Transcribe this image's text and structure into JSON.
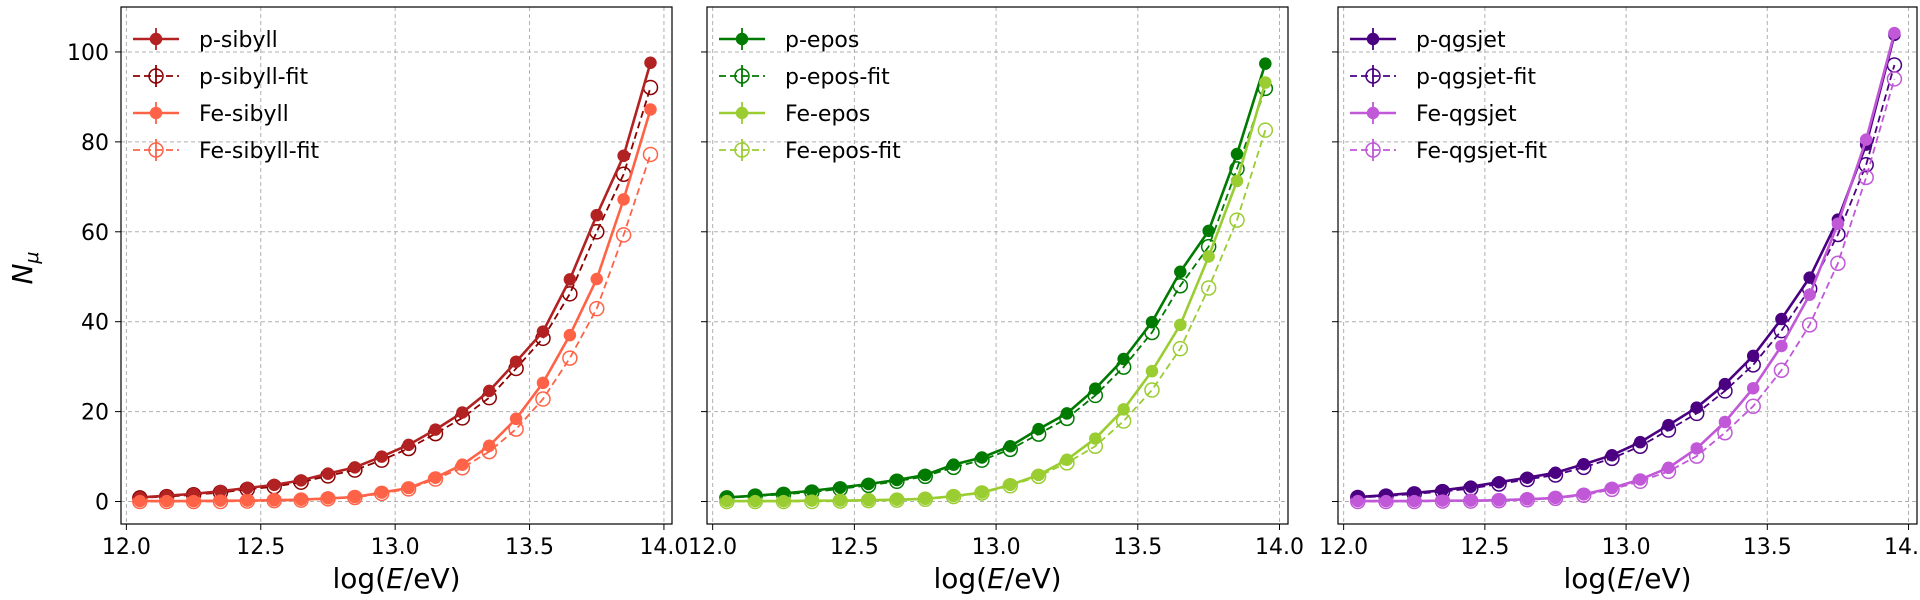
{
  "figure": {
    "ylabel_base": "N",
    "ylabel_sub": "μ"
  },
  "chart_data": [
    {
      "type": "line",
      "xlabel": "log(E/eV)",
      "xlim": [
        11.98,
        14.03
      ],
      "ylim": [
        -5,
        110
      ],
      "xticks": [
        "12.0",
        "12.5",
        "13.0",
        "13.5",
        "14.0"
      ],
      "yticks": [
        "0",
        "20",
        "40",
        "60",
        "80",
        "100"
      ],
      "grid": true,
      "legend_position": "top-left",
      "x": [
        12.05,
        12.15,
        12.25,
        12.35,
        12.45,
        12.55,
        12.65,
        12.75,
        12.85,
        12.95,
        13.05,
        13.15,
        13.25,
        13.35,
        13.45,
        13.55,
        13.65,
        13.75,
        13.85,
        13.95
      ],
      "series": [
        {
          "name": "p-sibyll",
          "style": "solid-filled",
          "color": "#b22222",
          "values": [
            0.9,
            1.3,
            1.7,
            2.3,
            3.0,
            3.7,
            4.7,
            6.2,
            7.6,
            10.0,
            12.6,
            16.0,
            19.8,
            24.6,
            31.1,
            37.8,
            49.4,
            63.7,
            76.9,
            97.6
          ]
        },
        {
          "name": "p-sibyll-fit",
          "style": "dashed-open",
          "color": "#8b0000",
          "values": [
            0.8,
            1.1,
            1.5,
            2.0,
            2.7,
            3.3,
            4.3,
            5.7,
            7.0,
            9.2,
            11.8,
            15.1,
            18.6,
            23.1,
            29.6,
            36.3,
            46.2,
            60.0,
            72.8,
            92.1
          ]
        },
        {
          "name": "Fe-sibyll",
          "style": "solid-filled",
          "color": "#ff6347",
          "values": [
            0.1,
            0.1,
            0.1,
            0.2,
            0.2,
            0.3,
            0.4,
            0.7,
            1.0,
            2.0,
            3.0,
            5.3,
            8.2,
            12.4,
            18.4,
            26.4,
            37.0,
            49.5,
            67.2,
            87.2
          ]
        },
        {
          "name": "Fe-sibyll-fit",
          "style": "dashed-open",
          "color": "#ff6347",
          "values": [
            0.0,
            0.0,
            0.0,
            0.0,
            0.1,
            0.2,
            0.3,
            0.6,
            0.9,
            1.8,
            2.8,
            5.0,
            7.5,
            11.1,
            16.1,
            22.8,
            31.9,
            42.9,
            59.3,
            77.2
          ]
        }
      ]
    },
    {
      "type": "line",
      "xlabel": "log(E/eV)",
      "xlim": [
        11.98,
        14.03
      ],
      "ylim": [
        -5,
        110
      ],
      "xticks": [
        "12.0",
        "12.5",
        "13.0",
        "13.5",
        "14.0"
      ],
      "yticks": [
        "0",
        "20",
        "40",
        "60",
        "80",
        "100"
      ],
      "grid": true,
      "legend_position": "top-left",
      "x": [
        12.05,
        12.15,
        12.25,
        12.35,
        12.45,
        12.55,
        12.65,
        12.75,
        12.85,
        12.95,
        13.05,
        13.15,
        13.25,
        13.35,
        13.45,
        13.55,
        13.65,
        13.75,
        13.85,
        13.95
      ],
      "series": [
        {
          "name": "p-epos",
          "style": "solid-filled",
          "color": "#007a00",
          "values": [
            0.9,
            1.3,
            1.8,
            2.4,
            3.1,
            3.9,
            4.8,
            5.9,
            8.2,
            9.8,
            12.3,
            16.1,
            19.6,
            25.1,
            31.7,
            39.9,
            51.1,
            60.2,
            77.3,
            97.4
          ]
        },
        {
          "name": "p-epos-fit",
          "style": "dashed-open",
          "color": "#007a00",
          "values": [
            0.8,
            1.2,
            1.6,
            2.1,
            2.8,
            3.6,
            4.5,
            5.6,
            7.6,
            9.2,
            11.6,
            15.0,
            18.5,
            23.6,
            29.9,
            37.6,
            48.0,
            56.7,
            74.0,
            91.9
          ]
        },
        {
          "name": "Fe-epos",
          "style": "solid-filled",
          "color": "#9acd32",
          "values": [
            0.1,
            0.1,
            0.1,
            0.2,
            0.2,
            0.3,
            0.4,
            0.6,
            1.2,
            2.0,
            3.7,
            5.9,
            9.3,
            14.0,
            20.5,
            29.0,
            39.3,
            54.5,
            71.3,
            93.2
          ]
        },
        {
          "name": "Fe-epos-fit",
          "style": "dashed-open",
          "color": "#9acd32",
          "values": [
            0.0,
            0.0,
            0.0,
            0.0,
            0.1,
            0.2,
            0.3,
            0.5,
            1.1,
            1.9,
            3.5,
            5.6,
            8.6,
            12.3,
            17.9,
            24.8,
            34.0,
            47.5,
            62.6,
            82.6
          ]
        }
      ]
    },
    {
      "type": "line",
      "xlabel": "log(E/eV)",
      "xlim": [
        11.98,
        14.03
      ],
      "ylim": [
        -5,
        110
      ],
      "xticks": [
        "12.0",
        "12.5",
        "13.0",
        "13.5",
        "14.0"
      ],
      "yticks": [
        "0",
        "20",
        "40",
        "60",
        "80",
        "100"
      ],
      "grid": true,
      "legend_position": "top-left",
      "x": [
        12.05,
        12.15,
        12.25,
        12.35,
        12.45,
        12.55,
        12.65,
        12.75,
        12.85,
        12.95,
        13.05,
        13.15,
        13.25,
        13.35,
        13.45,
        13.55,
        13.65,
        13.75,
        13.85,
        13.95
      ],
      "series": [
        {
          "name": "p-qgsjet",
          "style": "solid-filled",
          "color": "#4b0082",
          "values": [
            1.0,
            1.4,
            1.9,
            2.5,
            3.3,
            4.3,
            5.3,
            6.4,
            8.3,
            10.3,
            13.2,
            17.0,
            20.9,
            26.1,
            32.4,
            40.6,
            49.8,
            62.7,
            79.4,
            103.8
          ]
        },
        {
          "name": "p-qgsjet-fit",
          "style": "dashed-open",
          "color": "#4b0082",
          "values": [
            0.9,
            1.2,
            1.7,
            2.2,
            2.9,
            3.9,
            4.9,
            5.9,
            7.6,
            9.6,
            12.3,
            15.9,
            19.6,
            24.6,
            30.4,
            38.0,
            47.3,
            59.4,
            74.9,
            97.1
          ]
        },
        {
          "name": "Fe-qgsjet",
          "style": "solid-filled",
          "color": "#c058d8",
          "values": [
            0.1,
            0.1,
            0.1,
            0.2,
            0.2,
            0.3,
            0.5,
            0.8,
            1.6,
            3.0,
            4.9,
            7.5,
            11.8,
            17.7,
            25.2,
            34.6,
            46.0,
            61.8,
            80.5,
            104.2
          ]
        },
        {
          "name": "Fe-qgsjet-fit",
          "style": "dashed-open",
          "color": "#c058d8",
          "values": [
            0.0,
            0.0,
            0.0,
            0.1,
            0.1,
            0.2,
            0.4,
            0.7,
            1.4,
            2.7,
            4.5,
            6.7,
            10.1,
            15.3,
            21.2,
            29.2,
            39.3,
            53.0,
            72.1,
            94.0
          ]
        }
      ]
    }
  ]
}
